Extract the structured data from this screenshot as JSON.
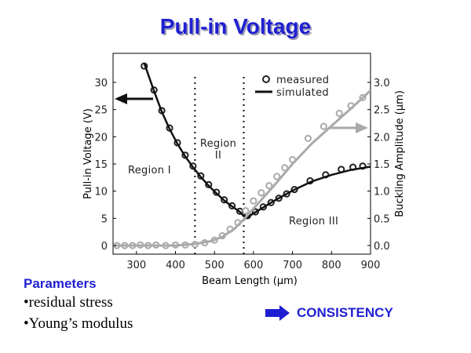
{
  "title": "Pull-in Voltage",
  "chart_data": {
    "type": "line",
    "xlabel": "Beam Length (μm)",
    "ylabel_left": "Pull-in Voltage (V)",
    "ylabel_right": "Buckling Amplitude (μm)",
    "xlim": [
      240,
      900
    ],
    "ylim_left": [
      0,
      35
    ],
    "ylim_right": [
      0,
      3.5
    ],
    "xticks": [
      300,
      400,
      500,
      600,
      700,
      800,
      900
    ],
    "xtick_labels": [
      "300",
      "400",
      "500",
      "600",
      "700",
      "800",
      "900"
    ],
    "yticks_left": [
      0,
      5,
      10,
      15,
      20,
      25,
      30
    ],
    "ytick_labels_left": [
      "0",
      "5",
      "10",
      "15",
      "20",
      "25",
      "30"
    ],
    "yticks_right": [
      0,
      0.5,
      1.0,
      1.5,
      2.0,
      2.5,
      3.0
    ],
    "ytick_labels_right": [
      "0.0",
      "0.5",
      "1.0",
      "1.5",
      "2.0",
      "2.5",
      "3.0"
    ],
    "legend": {
      "position": "top-right",
      "entries": [
        "measured",
        "simulated"
      ]
    },
    "region_boundaries_x": [
      450,
      575
    ],
    "region_labels": [
      "Region I",
      "Region\nII",
      "Region III"
    ],
    "series": [
      {
        "name": "pull-in voltage measured",
        "axis": "left",
        "style": "marker",
        "color": "#222222",
        "x": [
          320,
          345,
          365,
          385,
          405,
          425,
          445,
          465,
          485,
          505,
          525,
          545,
          565,
          585,
          605,
          625,
          645,
          665,
          685,
          705,
          745,
          785,
          825,
          855,
          880
        ],
        "y": [
          33.0,
          28.6,
          24.8,
          21.6,
          18.9,
          16.6,
          14.6,
          12.8,
          11.2,
          9.8,
          8.4,
          7.3,
          6.3,
          5.5,
          6.2,
          7.1,
          7.9,
          8.7,
          9.5,
          10.3,
          11.9,
          13.0,
          14.0,
          14.4,
          14.6
        ]
      },
      {
        "name": "pull-in voltage simulated",
        "axis": "left",
        "style": "line",
        "color": "#111111",
        "x": [
          320,
          345,
          365,
          385,
          405,
          425,
          445,
          465,
          485,
          505,
          525,
          545,
          565,
          580,
          600,
          650,
          700,
          750,
          800,
          850,
          900
        ],
        "y": [
          33.5,
          28.4,
          24.6,
          21.4,
          18.7,
          16.4,
          14.4,
          12.6,
          11.0,
          9.6,
          8.3,
          7.2,
          6.2,
          5.0,
          5.9,
          8.1,
          10.1,
          11.8,
          13.0,
          13.9,
          14.5
        ]
      },
      {
        "name": "buckling amplitude measured",
        "axis": "right",
        "style": "marker",
        "color": "#aaaaaa",
        "x": [
          250,
          270,
          290,
          310,
          330,
          350,
          375,
          400,
          425,
          450,
          475,
          500,
          520,
          540,
          560,
          580,
          600,
          620,
          640,
          660,
          680,
          700,
          740,
          780,
          820,
          850,
          880
        ],
        "y": [
          0.0,
          0.0,
          0.0,
          0.01,
          0.0,
          0.01,
          0.0,
          0.01,
          0.01,
          0.02,
          0.05,
          0.1,
          0.18,
          0.3,
          0.42,
          0.64,
          0.82,
          0.97,
          1.1,
          1.27,
          1.43,
          1.58,
          1.97,
          2.19,
          2.43,
          2.57,
          2.72
        ]
      },
      {
        "name": "buckling amplitude simulated",
        "axis": "right",
        "style": "line",
        "color": "#aaaaaa",
        "x": [
          240,
          400,
          450,
          490,
          520,
          550,
          575,
          600,
          650,
          700,
          750,
          800,
          850,
          900
        ],
        "y": [
          0.0,
          0.0,
          0.03,
          0.08,
          0.16,
          0.3,
          0.48,
          0.68,
          1.08,
          1.5,
          1.88,
          2.2,
          2.52,
          2.85
        ]
      }
    ]
  },
  "parameters": {
    "heading": "Parameters",
    "items": [
      "•residual stress",
      "•Young’s modulus"
    ]
  },
  "consistency": "CONSISTENCY"
}
